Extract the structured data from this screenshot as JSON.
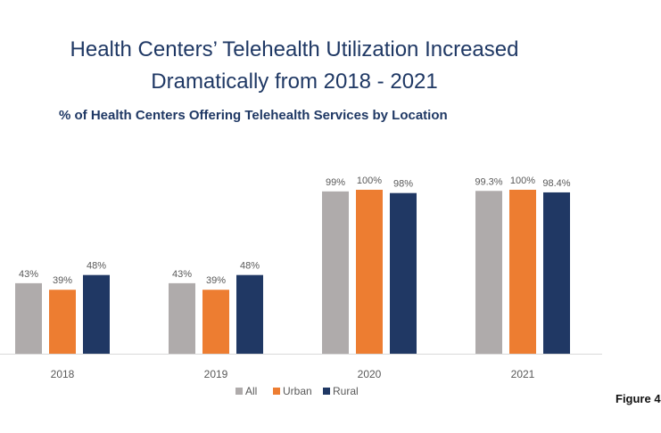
{
  "chart_data": {
    "type": "bar",
    "title_line1": "Health Centers’ Telehealth Utilization Increased",
    "title_line2": "Dramatically from 2018 - 2021",
    "subtitle": "% of Health Centers Offering Telehealth Services by Location",
    "categories": [
      "2018",
      "2019",
      "2020",
      "2021"
    ],
    "series": [
      {
        "name": "All",
        "color": "#afabab",
        "values": [
          43,
          43,
          99,
          99.3
        ],
        "labels": [
          "43%",
          "43%",
          "99%",
          "99.3%"
        ]
      },
      {
        "name": "Urban",
        "color": "#ed7d31",
        "values": [
          39,
          39,
          100,
          100
        ],
        "labels": [
          "39%",
          "39%",
          "100%",
          "100%"
        ]
      },
      {
        "name": "Rural",
        "color": "#203864",
        "values": [
          48,
          48,
          98,
          98.4
        ],
        "labels": [
          "48%",
          "48%",
          "98%",
          "98.4%"
        ]
      }
    ],
    "ylim": [
      0,
      100
    ],
    "grid": false,
    "legend_position": "bottom"
  },
  "figure_label": "Figure 4"
}
